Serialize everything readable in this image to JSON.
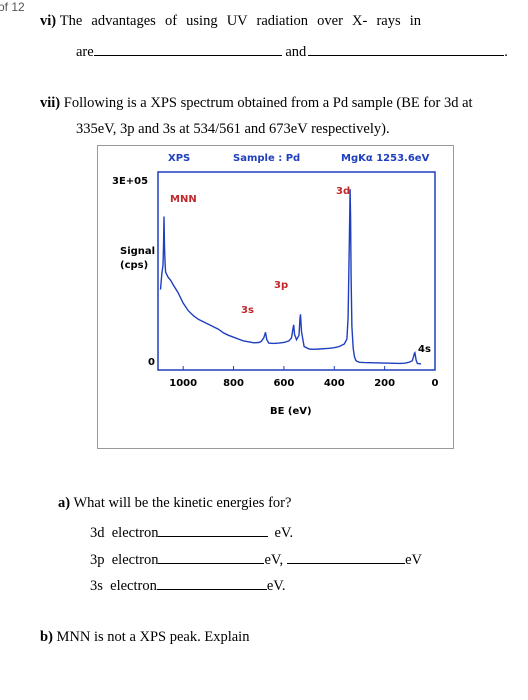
{
  "page_number": "of 12",
  "q6": {
    "number": "vi)",
    "text": "The advantages of using UV radiation over X- rays in",
    "line2_start": "are",
    "line2_mid": "and",
    "line2_end": "."
  },
  "q7": {
    "number": "vii)",
    "line1": "Following is a XPS spectrum obtained from a Pd sample (BE for 3d at",
    "line2": "335eV, 3p and 3s at 534/561 and 673eV respectively)."
  },
  "chart_data": {
    "type": "line",
    "header": {
      "left": "XPS",
      "mid": "Sample : Pd",
      "right": "MgKα 1253.6eV"
    },
    "xlabel": "BE (eV)",
    "ylabel": [
      "Signal",
      "(cps)"
    ],
    "xlim": [
      1100,
      0
    ],
    "x_ticks": [
      "1000",
      "800",
      "600",
      "400",
      "200",
      "0"
    ],
    "x_tick_values": [
      1000,
      800,
      600,
      400,
      200,
      0
    ],
    "y_ticks": [
      "3E+05",
      "0"
    ],
    "y_tick_values": [
      300000,
      0
    ],
    "ylim": [
      0,
      320000
    ],
    "series": [
      {
        "color": "#1f3fbf",
        "x": [
          1090,
          1085,
          1080,
          1078,
          1076,
          1074,
          1072,
          1070,
          1060,
          1050,
          1040,
          1020,
          1000,
          980,
          960,
          940,
          920,
          900,
          880,
          860,
          840,
          820,
          800,
          780,
          760,
          740,
          720,
          700,
          690,
          680,
          673,
          668,
          660,
          640,
          620,
          600,
          580,
          570,
          565,
          561,
          558,
          550,
          540,
          536,
          534,
          530,
          520,
          500,
          480,
          460,
          440,
          420,
          400,
          380,
          360,
          350,
          345,
          340,
          337,
          335,
          333,
          330,
          325,
          320,
          315,
          310,
          300,
          280,
          260,
          240,
          220,
          200,
          180,
          160,
          140,
          120,
          100,
          90,
          85,
          82,
          80,
          75,
          70,
          60,
          55
        ],
        "y": [
          130000,
          155000,
          170000,
          200000,
          248000,
          200000,
          172000,
          158000,
          150000,
          145000,
          138000,
          125000,
          108000,
          96000,
          88000,
          82000,
          78000,
          74000,
          70000,
          66000,
          60000,
          56000,
          53000,
          50000,
          47000,
          45500,
          44000,
          44500,
          46000,
          52000,
          61000,
          49000,
          43500,
          43000,
          43500,
          44500,
          47000,
          52000,
          64000,
          73000,
          58000,
          49000,
          56000,
          84000,
          90000,
          62000,
          38000,
          34000,
          33500,
          34000,
          34500,
          35000,
          36000,
          38000,
          42000,
          50000,
          85000,
          215000,
          292000,
          245000,
          150000,
          70000,
          35000,
          22000,
          16000,
          14000,
          12500,
          12000,
          11800,
          11600,
          11400,
          11200,
          11000,
          10800,
          10600,
          11000,
          13000,
          15000,
          22000,
          27000,
          28000,
          16000,
          10500,
          10000,
          10000
        ]
      }
    ],
    "annotations": [
      {
        "text": "MNN",
        "color": "#c0282c"
      },
      {
        "text": "3d",
        "color": "#c0282c"
      },
      {
        "text": "3p",
        "color": "#c0282c"
      },
      {
        "text": "3s",
        "color": "#c0282c"
      },
      {
        "text": "4s",
        "color": "#000000"
      }
    ]
  },
  "qa": {
    "prompt_label": "a)",
    "prompt": "What will be the kinetic energies for?",
    "rows": [
      {
        "label": "3d  electron",
        "unit": "eV."
      },
      {
        "label": "3p  electron",
        "unit": "eV,",
        "unit2": "eV"
      },
      {
        "label": "3s  electron",
        "unit": "eV."
      }
    ]
  },
  "qb": {
    "label": "b)",
    "text": "MNN is not a XPS peak. Explain"
  }
}
